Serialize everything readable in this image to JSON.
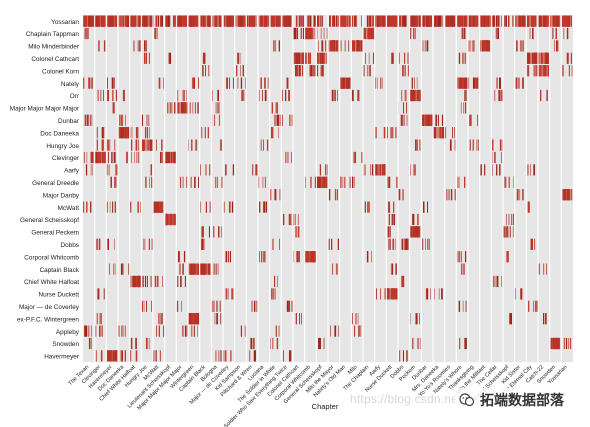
{
  "chart_data": {
    "type": "heatmap",
    "title": "",
    "xlabel": "Chapter",
    "ylabel": "",
    "grid": false,
    "legend": "none",
    "colors": {
      "background": "#e6e6e6",
      "separator": "#ffffff",
      "mark": "#c0392b",
      "mark_dark": "#a0241a"
    },
    "characters": [
      "Yossarian",
      "Chaplain Tappman",
      "Milo Minderbinder",
      "Colonel Cathcart",
      "Colonel Korn",
      "Nately",
      "Orr",
      "Major Major Major Major",
      "Dunbar",
      "Doc Daneeka",
      "Hungry Joe",
      "Clevinger",
      "Aarfy",
      "General Dreedle",
      "Major Danby",
      "McWatt",
      "General Scheisskopf",
      "General Peckem",
      "Dobbs",
      "Corporal Whitcomb",
      "Captain Black",
      "Chief White Halfoat",
      "Nurse Duckett",
      "Major — de Coverley",
      "ex-P.F.C. Wintergreen",
      "Appleby",
      "Snowden",
      "Havermeyer"
    ],
    "chapters": [
      "The Texan",
      "Clevinger",
      "Havermeyer",
      "Doc Daneeka",
      "Chief White Halfoat",
      "Hungry Joe",
      "McWatt",
      "Lieutenant Scheisskopf",
      "Major Major Major Major",
      "Wintergreen",
      "Captain Black",
      "Bologna",
      "Major — de Coverley",
      "Kid Sampson",
      "Piltchard & Wren",
      "Luciana",
      "The Soldier in White",
      "The Soldier Who Saw Everything Twice",
      "Colonel Cathcart",
      "Corporal Whitcomb",
      "General Scheisskopf",
      "Milo the Mayor",
      "Nately's Old Man",
      "Milo",
      "The Chaplain",
      "Aarfy",
      "Nurse Duckett",
      "Dobbs",
      "Peckem",
      "Dunbar",
      "Mrs. Daneeka",
      "Yo-Yo's Roomies",
      "Nately's Whore",
      "Thanksgiving",
      "Milo the Militant",
      "The Cellar",
      "General Scheisskopf",
      "Kid Sister",
      "The Eternal City",
      "Catch-22",
      "Snowden",
      "Yossarian"
    ],
    "occurrences": {
      "Yossarian": [
        [
          1,
          0.95
        ],
        [
          2,
          0.9
        ],
        [
          3,
          0.9
        ],
        [
          4,
          0.9
        ],
        [
          5,
          0.95
        ],
        [
          6,
          0.9
        ],
        [
          7,
          0.7
        ],
        [
          8,
          0.85
        ],
        [
          9,
          0.9
        ],
        [
          10,
          0.9
        ],
        [
          11,
          0.9
        ],
        [
          12,
          0.9
        ],
        [
          13,
          0.9
        ],
        [
          14,
          0.9
        ],
        [
          15,
          0.9
        ],
        [
          16,
          0.95
        ],
        [
          17,
          0.9
        ],
        [
          18,
          0.9
        ],
        [
          19,
          0.7
        ],
        [
          20,
          0.6
        ],
        [
          21,
          0.5
        ],
        [
          22,
          0.8
        ],
        [
          23,
          0.9
        ],
        [
          24,
          0.5
        ],
        [
          25,
          0.7
        ],
        [
          26,
          0.9
        ],
        [
          27,
          0.9
        ],
        [
          28,
          0.8
        ],
        [
          29,
          0.9
        ],
        [
          30,
          0.9
        ],
        [
          31,
          0.85
        ],
        [
          32,
          0.9
        ],
        [
          33,
          0.9
        ],
        [
          34,
          0.9
        ],
        [
          35,
          0.9
        ],
        [
          36,
          0.8
        ],
        [
          37,
          0.6
        ],
        [
          38,
          0.9
        ],
        [
          39,
          0.9
        ],
        [
          40,
          0.95
        ],
        [
          41,
          0.95
        ],
        [
          42,
          0.95
        ]
      ],
      "Chaplain Tappman": [
        [
          1,
          0.3
        ],
        [
          7,
          0.2
        ],
        [
          19,
          0.8
        ],
        [
          20,
          0.9
        ],
        [
          21,
          0.3
        ],
        [
          25,
          0.95
        ],
        [
          29,
          0.2
        ],
        [
          33,
          0.3
        ],
        [
          36,
          0.2
        ],
        [
          39,
          0.3
        ],
        [
          41,
          0.2
        ],
        [
          42,
          0.3
        ]
      ],
      "Milo Minderbinder": [
        [
          2,
          0.2
        ],
        [
          5,
          0.3
        ],
        [
          6,
          0.2
        ],
        [
          17,
          0.2
        ],
        [
          21,
          0.3
        ],
        [
          22,
          0.9
        ],
        [
          23,
          0.3
        ],
        [
          24,
          0.95
        ],
        [
          30,
          0.3
        ],
        [
          34,
          0.3
        ],
        [
          35,
          0.95
        ],
        [
          38,
          0.3
        ],
        [
          41,
          0.2
        ]
      ],
      "Colonel Cathcart": [
        [
          6,
          0.3
        ],
        [
          8,
          0.2
        ],
        [
          11,
          0.3
        ],
        [
          14,
          0.3
        ],
        [
          19,
          0.95
        ],
        [
          20,
          0.6
        ],
        [
          21,
          0.8
        ],
        [
          25,
          0.3
        ],
        [
          27,
          0.2
        ],
        [
          28,
          0.3
        ],
        [
          33,
          0.3
        ],
        [
          39,
          0.9
        ],
        [
          40,
          0.9
        ],
        [
          42,
          0.3
        ]
      ],
      "Colonel Korn": [
        [
          11,
          0.2
        ],
        [
          14,
          0.3
        ],
        [
          19,
          0.7
        ],
        [
          20,
          0.4
        ],
        [
          21,
          0.5
        ],
        [
          25,
          0.2
        ],
        [
          28,
          0.3
        ],
        [
          39,
          0.5
        ],
        [
          40,
          0.9
        ],
        [
          42,
          0.3
        ]
      ],
      "Nately": [
        [
          1,
          0.3
        ],
        [
          3,
          0.3
        ],
        [
          7,
          0.2
        ],
        [
          10,
          0.3
        ],
        [
          13,
          0.3
        ],
        [
          14,
          0.2
        ],
        [
          16,
          0.3
        ],
        [
          18,
          0.2
        ],
        [
          23,
          0.9
        ],
        [
          26,
          0.3
        ],
        [
          29,
          0.2
        ],
        [
          33,
          0.9
        ],
        [
          34,
          0.5
        ],
        [
          36,
          0.3
        ],
        [
          38,
          0.4
        ]
      ],
      "Orr": [
        [
          2,
          0.2
        ],
        [
          3,
          0.3
        ],
        [
          4,
          0.2
        ],
        [
          9,
          0.3
        ],
        [
          12,
          0.2
        ],
        [
          14,
          0.2
        ],
        [
          16,
          0.3
        ],
        [
          18,
          0.3
        ],
        [
          22,
          0.4
        ],
        [
          24,
          0.3
        ],
        [
          28,
          0.2
        ],
        [
          29,
          0.9
        ],
        [
          33,
          0.2
        ],
        [
          36,
          0.3
        ],
        [
          40,
          0.3
        ]
      ],
      "Major Major Major Major": [
        [
          3,
          0.2
        ],
        [
          8,
          0.3
        ],
        [
          9,
          0.95
        ],
        [
          10,
          0.3
        ],
        [
          12,
          0.2
        ],
        [
          17,
          0.2
        ],
        [
          28,
          0.3
        ],
        [
          33,
          0.2
        ]
      ],
      "Dunbar": [
        [
          1,
          0.5
        ],
        [
          4,
          0.3
        ],
        [
          6,
          0.3
        ],
        [
          12,
          0.2
        ],
        [
          17,
          0.4
        ],
        [
          18,
          0.3
        ],
        [
          28,
          0.3
        ],
        [
          30,
          0.9
        ],
        [
          31,
          0.3
        ],
        [
          34,
          0.2
        ]
      ],
      "Doc Daneeka": [
        [
          2,
          0.3
        ],
        [
          4,
          0.95
        ],
        [
          5,
          0.3
        ],
        [
          6,
          0.3
        ],
        [
          11,
          0.2
        ],
        [
          17,
          0.2
        ],
        [
          26,
          0.3
        ],
        [
          27,
          0.3
        ],
        [
          31,
          0.95
        ],
        [
          32,
          0.2
        ]
      ],
      "Hungry Joe": [
        [
          2,
          0.3
        ],
        [
          3,
          0.3
        ],
        [
          5,
          0.3
        ],
        [
          6,
          0.9
        ],
        [
          7,
          0.2
        ],
        [
          10,
          0.3
        ],
        [
          12,
          0.2
        ],
        [
          16,
          0.3
        ],
        [
          29,
          0.3
        ],
        [
          32,
          0.2
        ],
        [
          34,
          0.3
        ],
        [
          36,
          0.2
        ]
      ],
      "Clevinger": [
        [
          1,
          0.6
        ],
        [
          2,
          0.95
        ],
        [
          3,
          0.3
        ],
        [
          4,
          0.2
        ],
        [
          5,
          0.3
        ],
        [
          7,
          0.2
        ],
        [
          8,
          0.9
        ],
        [
          18,
          0.2
        ],
        [
          24,
          0.3
        ],
        [
          36,
          0.2
        ]
      ],
      "Aarfy": [
        [
          1,
          0.2
        ],
        [
          3,
          0.3
        ],
        [
          6,
          0.2
        ],
        [
          11,
          0.2
        ],
        [
          13,
          0.3
        ],
        [
          15,
          0.3
        ],
        [
          21,
          0.2
        ],
        [
          25,
          0.3
        ],
        [
          26,
          0.9
        ],
        [
          29,
          0.2
        ],
        [
          35,
          0.3
        ],
        [
          36,
          0.3
        ],
        [
          39,
          0.3
        ]
      ],
      "General Dreedle": [
        [
          3,
          0.3
        ],
        [
          6,
          0.2
        ],
        [
          9,
          0.3
        ],
        [
          10,
          0.3
        ],
        [
          12,
          0.3
        ],
        [
          16,
          0.3
        ],
        [
          20,
          0.2
        ],
        [
          21,
          0.9
        ],
        [
          23,
          0.3
        ],
        [
          24,
          0.2
        ],
        [
          27,
          0.3
        ],
        [
          33,
          0.2
        ],
        [
          37,
          0.3
        ]
      ],
      "Major Danby": [
        [
          17,
          0.3
        ],
        [
          22,
          0.3
        ],
        [
          28,
          0.2
        ],
        [
          32,
          0.3
        ],
        [
          38,
          0.3
        ],
        [
          42,
          0.95
        ]
      ],
      "McWatt": [
        [
          1,
          0.2
        ],
        [
          3,
          0.3
        ],
        [
          5,
          0.3
        ],
        [
          7,
          0.9
        ],
        [
          11,
          0.3
        ],
        [
          13,
          0.3
        ],
        [
          16,
          0.3
        ],
        [
          25,
          0.2
        ],
        [
          27,
          0.3
        ],
        [
          30,
          0.3
        ],
        [
          39,
          0.2
        ]
      ],
      "General Scheisskopf": [
        [
          8,
          0.95
        ],
        [
          18,
          0.2
        ],
        [
          19,
          0.2
        ],
        [
          27,
          0.3
        ],
        [
          29,
          0.3
        ],
        [
          37,
          0.3
        ]
      ],
      "General Peckem": [
        [
          11,
          0.2
        ],
        [
          12,
          0.3
        ],
        [
          19,
          0.3
        ],
        [
          27,
          0.2
        ],
        [
          29,
          0.95
        ],
        [
          37,
          0.5
        ]
      ],
      "Dobbs": [
        [
          2,
          0.3
        ],
        [
          3,
          0.2
        ],
        [
          6,
          0.3
        ],
        [
          11,
          0.3
        ],
        [
          17,
          0.2
        ],
        [
          22,
          0.3
        ],
        [
          27,
          0.3
        ],
        [
          28,
          0.8
        ],
        [
          30,
          0.3
        ],
        [
          39,
          0.2
        ]
      ],
      "Corporal Whitcomb": [
        [
          9,
          0.2
        ],
        [
          13,
          0.3
        ],
        [
          16,
          0.3
        ],
        [
          19,
          0.3
        ],
        [
          20,
          0.95
        ],
        [
          25,
          0.3
        ],
        [
          33,
          0.3
        ],
        [
          37,
          0.2
        ]
      ],
      "Captain Black": [
        [
          3,
          0.2
        ],
        [
          4,
          0.3
        ],
        [
          9,
          0.3
        ],
        [
          10,
          0.9
        ],
        [
          11,
          0.95
        ],
        [
          12,
          0.3
        ],
        [
          22,
          0.2
        ],
        [
          27,
          0.3
        ],
        [
          33,
          0.3
        ],
        [
          40,
          0.2
        ]
      ],
      "Chief White Halfoat": [
        [
          5,
          0.9
        ],
        [
          6,
          0.3
        ],
        [
          7,
          0.3
        ],
        [
          9,
          0.3
        ],
        [
          17,
          0.2
        ],
        [
          28,
          0.2
        ],
        [
          36,
          0.3
        ]
      ],
      "Nurse Duckett": [
        [
          2,
          0.2
        ],
        [
          13,
          0.3
        ],
        [
          17,
          0.3
        ],
        [
          26,
          0.3
        ],
        [
          27,
          0.9
        ],
        [
          30,
          0.3
        ],
        [
          31,
          0.3
        ],
        [
          38,
          0.2
        ]
      ],
      "Major — de Coverley": [
        [
          6,
          0.3
        ],
        [
          9,
          0.2
        ],
        [
          12,
          0.5
        ],
        [
          15,
          0.3
        ],
        [
          18,
          0.3
        ],
        [
          33,
          0.2
        ],
        [
          39,
          0.3
        ]
      ],
      "ex-P.F.C. Wintergreen": [
        [
          2,
          0.3
        ],
        [
          7,
          0.2
        ],
        [
          10,
          0.9
        ],
        [
          12,
          0.3
        ],
        [
          19,
          0.2
        ],
        [
          24,
          0.3
        ],
        [
          29,
          0.3
        ],
        [
          37,
          0.3
        ],
        [
          40,
          0.2
        ]
      ],
      "Appleby": [
        [
          1,
          0.4
        ],
        [
          2,
          0.3
        ],
        [
          4,
          0.3
        ],
        [
          7,
          0.3
        ],
        [
          9,
          0.2
        ],
        [
          10,
          0.3
        ],
        [
          14,
          0.2
        ],
        [
          17,
          0.2
        ],
        [
          22,
          0.3
        ],
        [
          24,
          0.2
        ]
      ],
      "Snowden": [
        [
          1,
          0.3
        ],
        [
          5,
          0.3
        ],
        [
          6,
          0.2
        ],
        [
          15,
          0.2
        ],
        [
          17,
          0.3
        ],
        [
          21,
          0.3
        ],
        [
          29,
          0.2
        ],
        [
          33,
          0.3
        ],
        [
          41,
          0.9
        ],
        [
          42,
          0.3
        ]
      ],
      "Havermeyer": [
        [
          2,
          0.3
        ],
        [
          3,
          0.9
        ],
        [
          4,
          0.2
        ],
        [
          5,
          0.3
        ],
        [
          7,
          0.3
        ],
        [
          12,
          0.3
        ],
        [
          13,
          0.2
        ],
        [
          15,
          0.3
        ],
        [
          18,
          0.3
        ],
        [
          28,
          0.2
        ]
      ]
    }
  },
  "watermark": {
    "text": "https://blog.csdn.net/qq_19600291"
  },
  "badge": {
    "icon": "wechat-icon",
    "text": "拓端数据部落"
  }
}
